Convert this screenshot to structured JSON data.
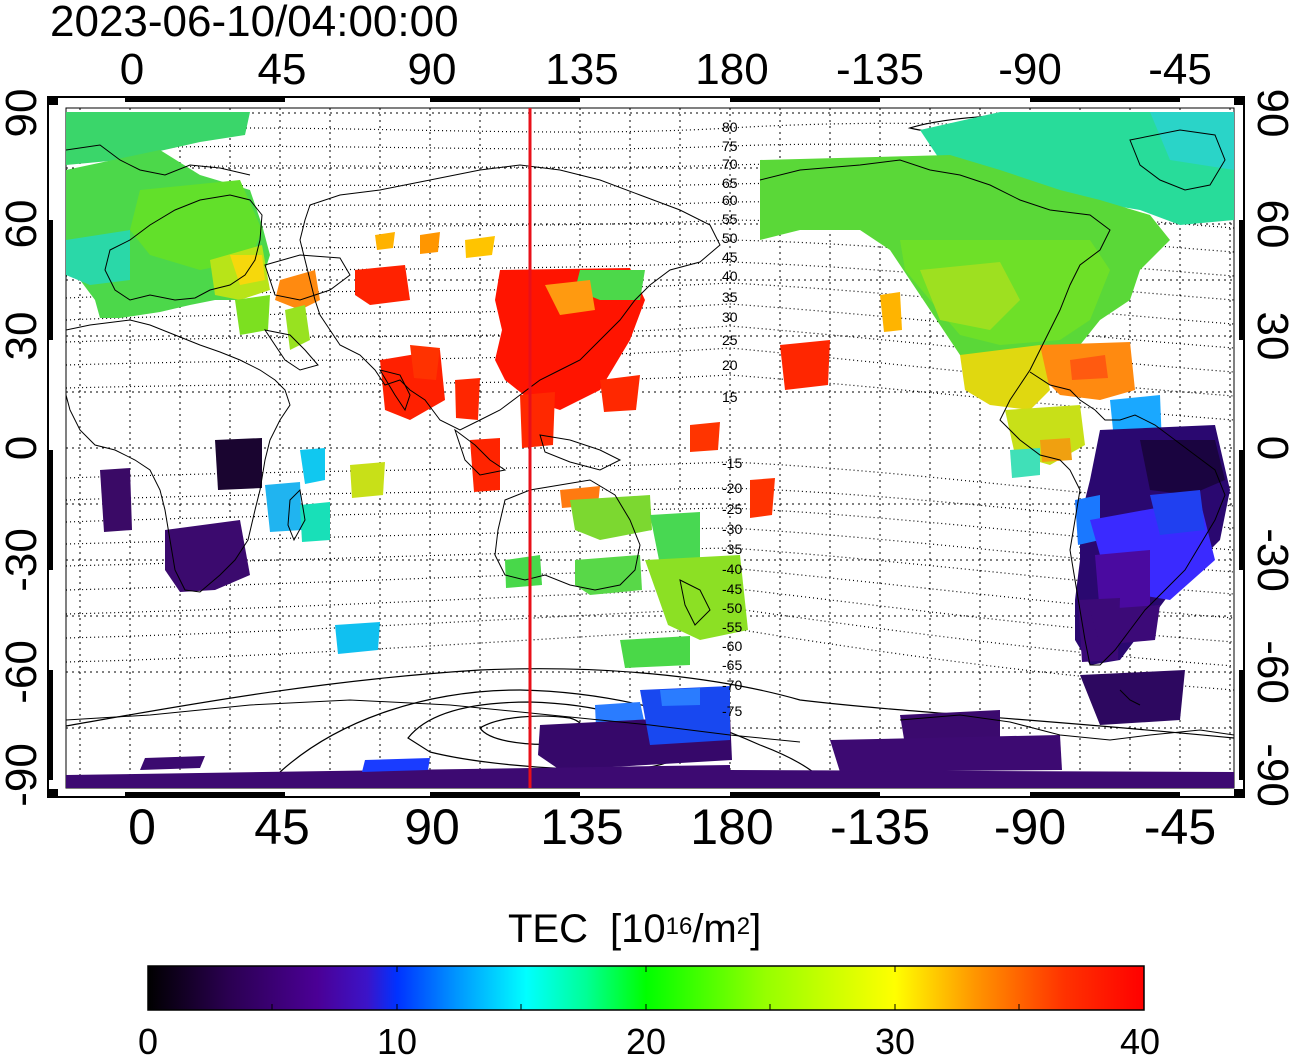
{
  "timestamp": "2023-06-10/04:00:00",
  "map": {
    "projection": "equirectangular",
    "center_longitude_label": "0 to 360 shifted, Pacific-centered",
    "top_lon_labels": [
      "0",
      "45",
      "90",
      "135",
      "180",
      "-135",
      "-90",
      "-45"
    ],
    "bottom_lon_labels": [
      "0",
      "45",
      "90",
      "135",
      "180",
      "-135",
      "-90",
      "-45"
    ],
    "left_lat_labels": [
      "90",
      "60",
      "30",
      "0",
      "-30",
      "-60",
      "-90"
    ],
    "right_lat_labels": [
      "90",
      "60",
      "30",
      "0",
      "-30",
      "-60",
      "-90"
    ],
    "magnetic_latitude_labels": [
      "80",
      "75",
      "70",
      "65",
      "60",
      "55",
      "50",
      "45",
      "40",
      "35",
      "30",
      "25",
      "20",
      "15",
      "-15",
      "-20",
      "-25",
      "-30",
      "-35",
      "-40",
      "-45",
      "-50",
      "-55",
      "-60",
      "-65",
      "-70",
      "-75"
    ],
    "sun_marker_color": "#e8101a",
    "sun_marker_longitude": 120
  },
  "colorbar": {
    "title_prefix": "TEC",
    "title_unit_open": "[10",
    "title_exp": "16",
    "title_unit_mid": "/m",
    "title_exp2": "2",
    "title_unit_close": "]",
    "min": 0,
    "max": 40,
    "ticks": [
      "0",
      "10",
      "20",
      "30",
      "40"
    ],
    "colors": [
      "#000000",
      "#2a0050",
      "#4b0096",
      "#3c14c8",
      "#0032ff",
      "#0096ff",
      "#00ffff",
      "#00ff96",
      "#00ff00",
      "#96ff00",
      "#ffff00",
      "#ff9600",
      "#ff3200",
      "#ff0000"
    ]
  },
  "regions": [
    {
      "name": "europe",
      "color": "#39d84a"
    },
    {
      "name": "north-america",
      "color": "#5bd832"
    },
    {
      "name": "japan",
      "color": "#ff2000"
    },
    {
      "name": "south-america",
      "color": "#2d0878"
    },
    {
      "name": "antarctic",
      "color": "#3a0870"
    }
  ]
}
